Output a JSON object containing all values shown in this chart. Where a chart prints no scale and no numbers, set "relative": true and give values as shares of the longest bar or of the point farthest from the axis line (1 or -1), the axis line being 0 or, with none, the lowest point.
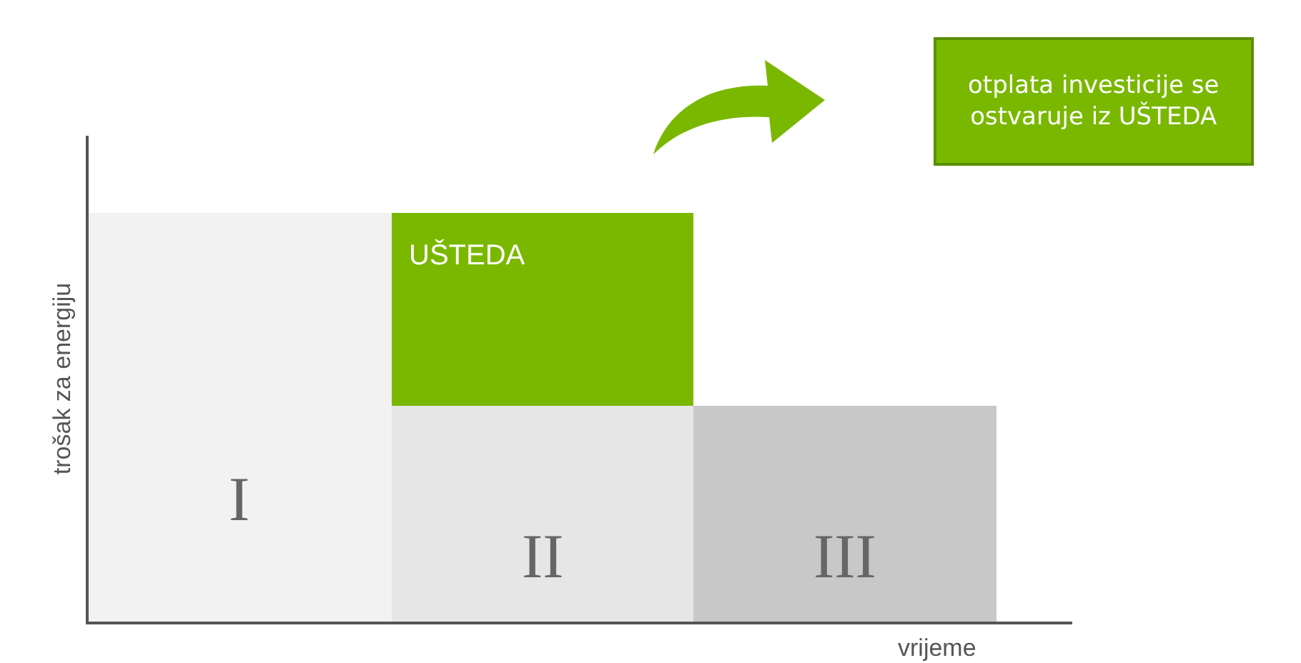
{
  "chart_data": {
    "type": "bar",
    "stacked": true,
    "relative": true,
    "xlabel": "vrijeme",
    "ylabel": "trošak za energiju",
    "categories": [
      "I",
      "II",
      "III"
    ],
    "series": [
      {
        "colors": [
          "#f2f2f2",
          "#e6e6e6",
          "#c8c8c8"
        ],
        "values": [
          1,
          0.53,
          0.53
        ]
      },
      {
        "name": "UŠTEDA",
        "color": "#7ab800",
        "values": [
          null,
          0.47,
          null
        ]
      }
    ],
    "annotations": [
      "otplata investicije se ostvaruje iz UŠTEDA"
    ],
    "tick_labels": false
  }
}
